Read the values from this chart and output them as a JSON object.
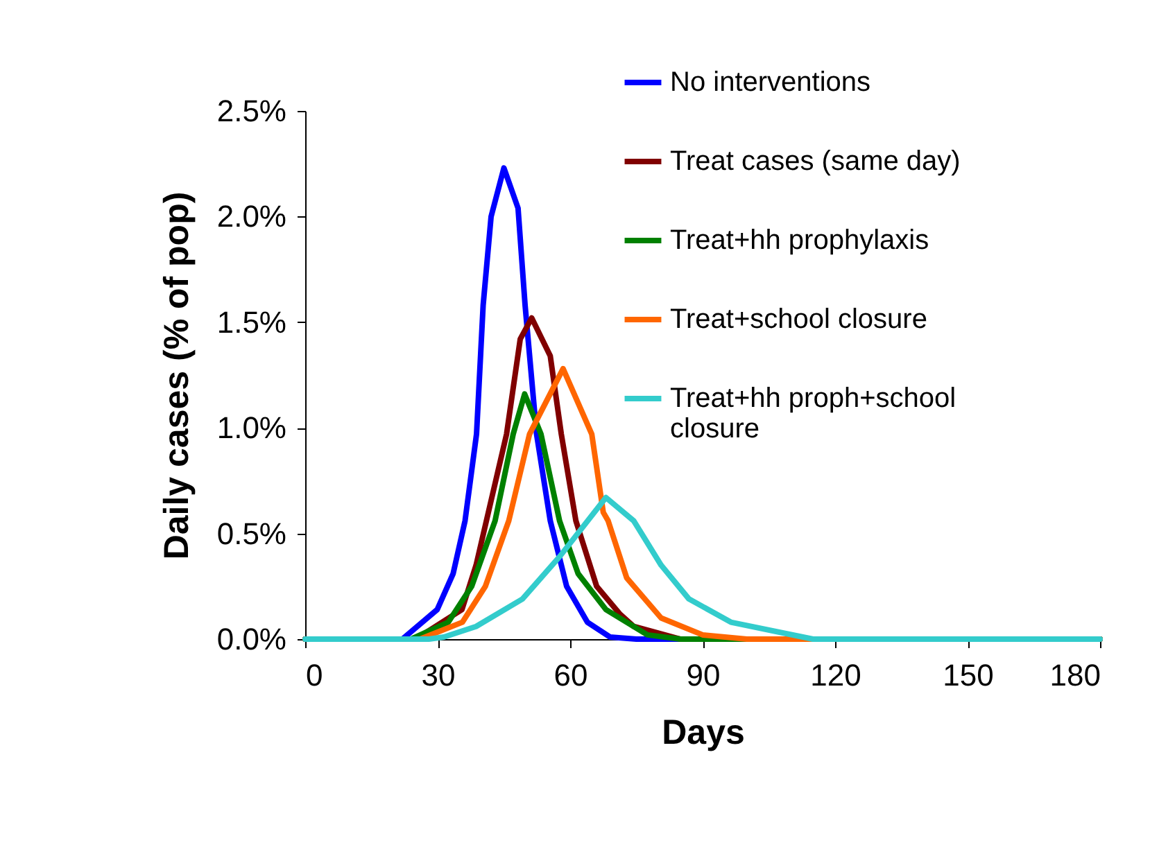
{
  "chart_data": {
    "type": "line",
    "xlabel": "Days",
    "ylabel": "Daily cases (% of pop)",
    "xlim": [
      0,
      180
    ],
    "xticks": [
      0,
      30,
      60,
      90,
      120,
      150,
      180
    ],
    "ylim": [
      0,
      2.5
    ],
    "yticks": [
      {
        "value": 0,
        "label": "0.0%"
      },
      {
        "value": 0.5,
        "label": "0.5%"
      },
      {
        "value": 1,
        "label": "1.0%"
      },
      {
        "value": 1.5,
        "label": "1.5%"
      },
      {
        "value": 2,
        "label": "2.0%"
      },
      {
        "value": 2.5,
        "label": "2.5%"
      }
    ],
    "grid": false,
    "legend": "top right",
    "marker": "none",
    "line_style": "solid",
    "series": [
      {
        "name": "No interventions",
        "color": "#0000ff",
        "x": [
          0,
          22,
          29.9,
          33.5,
          36.2,
          38.8,
          40.3,
          42.1,
          45,
          48.2,
          49.8,
          52.4,
          55.5,
          59.2,
          63.9,
          69,
          75,
          180
        ],
        "values": [
          0,
          0,
          0.14,
          0.31,
          0.56,
          0.97,
          1.58,
          2.0,
          2.23,
          2.04,
          1.58,
          0.97,
          0.56,
          0.25,
          0.08,
          0.01,
          0,
          0
        ]
      },
      {
        "name": "Treat cases (same day)",
        "color": "#800000",
        "x": [
          0,
          25,
          35.5,
          38.7,
          45.6,
          48.7,
          51.3,
          55.5,
          58,
          61.3,
          66,
          71.2,
          74.4,
          85,
          180
        ],
        "values": [
          0,
          0,
          0.14,
          0.35,
          0.97,
          1.42,
          1.52,
          1.34,
          0.97,
          0.56,
          0.25,
          0.12,
          0.06,
          0,
          0
        ]
      },
      {
        "name": "Treat+hh prophylaxis",
        "color": "#008000",
        "x": [
          0,
          24,
          32.4,
          37.7,
          43,
          47.1,
          49.7,
          53.4,
          57.6,
          61.8,
          68.1,
          77.5,
          85,
          180
        ],
        "values": [
          0,
          0,
          0.08,
          0.25,
          0.56,
          0.97,
          1.16,
          0.97,
          0.56,
          0.31,
          0.14,
          0.02,
          0,
          0
        ]
      },
      {
        "name": "Treat+school closure",
        "color": "#ff6600",
        "x": [
          0,
          26,
          35.6,
          40.8,
          46.1,
          50.8,
          58.4,
          64.9,
          67.5,
          68.6,
          72.8,
          80.6,
          90,
          100,
          180
        ],
        "values": [
          0,
          0,
          0.08,
          0.25,
          0.56,
          0.97,
          1.28,
          0.97,
          0.6,
          0.56,
          0.29,
          0.1,
          0.02,
          0,
          0
        ]
      },
      {
        "name": "Treat+hh proph+school closure",
        "color": "#33cccc",
        "x": [
          0,
          28,
          31.4,
          38.7,
          49.2,
          57.6,
          68.1,
          74.4,
          80.6,
          86.9,
          96.4,
          115,
          180
        ],
        "values": [
          0,
          0,
          0.01,
          0.06,
          0.19,
          0.39,
          0.67,
          0.56,
          0.35,
          0.19,
          0.08,
          0,
          0
        ]
      }
    ]
  }
}
